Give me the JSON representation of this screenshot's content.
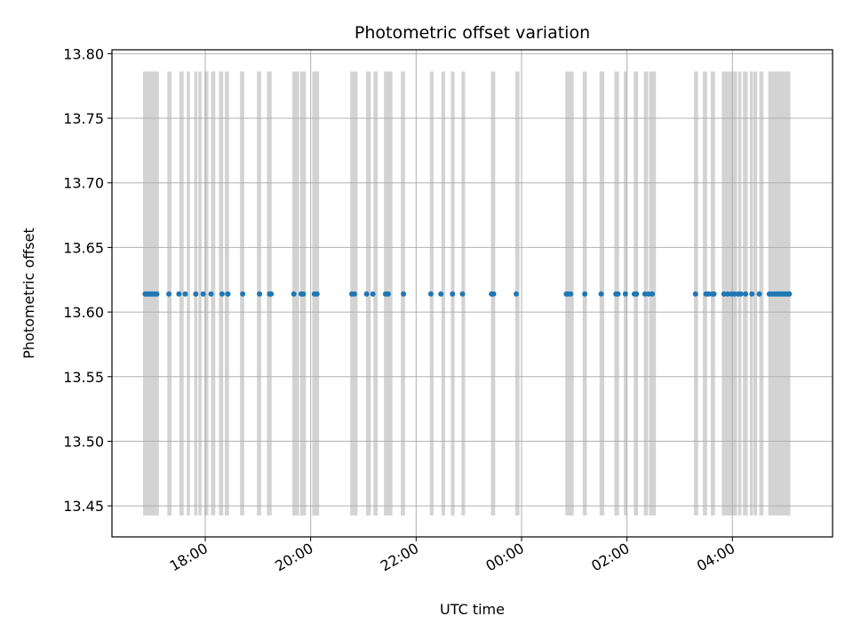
{
  "chart_data": {
    "type": "scatter",
    "title": "Photometric offset variation",
    "xlabel": "UTC time",
    "ylabel": "Photometric offset",
    "xlim_hours": [
      16.23,
      29.9
    ],
    "ylim": [
      13.426,
      13.803
    ],
    "grid": true,
    "x_ticks": [
      {
        "hours": 18,
        "label": "18:00"
      },
      {
        "hours": 20,
        "label": "20:00"
      },
      {
        "hours": 22,
        "label": "22:00"
      },
      {
        "hours": 24,
        "label": "00:00"
      },
      {
        "hours": 26,
        "label": "02:00"
      },
      {
        "hours": 28,
        "label": "04:00"
      }
    ],
    "y_ticks": [
      {
        "value": 13.45,
        "label": "13.45"
      },
      {
        "value": 13.5,
        "label": "13.50"
      },
      {
        "value": 13.55,
        "label": "13.55"
      },
      {
        "value": 13.6,
        "label": "13.60"
      },
      {
        "value": 13.65,
        "label": "13.65"
      },
      {
        "value": 13.7,
        "label": "13.70"
      },
      {
        "value": 13.75,
        "label": "13.75"
      },
      {
        "value": 13.8,
        "label": "13.80"
      }
    ],
    "exposure_bands": {
      "color": "#d3d3d3",
      "y_range": [
        13.4426,
        13.7862
      ],
      "intervals_hours": [
        [
          16.82,
          17.12
        ],
        [
          17.28,
          17.36
        ],
        [
          17.51,
          17.59
        ],
        [
          17.65,
          17.71
        ],
        [
          17.79,
          17.85
        ],
        [
          17.87,
          17.93
        ],
        [
          17.98,
          18.06
        ],
        [
          18.11,
          18.19
        ],
        [
          18.26,
          18.34
        ],
        [
          18.37,
          18.45
        ],
        [
          18.66,
          18.74
        ],
        [
          18.98,
          19.06
        ],
        [
          19.17,
          19.26
        ],
        [
          19.65,
          19.78
        ],
        [
          19.8,
          19.91
        ],
        [
          20.03,
          20.16
        ],
        [
          20.75,
          20.89
        ],
        [
          21.05,
          21.14
        ],
        [
          21.19,
          21.27
        ],
        [
          21.39,
          21.55
        ],
        [
          21.71,
          21.79
        ],
        [
          22.26,
          22.33
        ],
        [
          22.48,
          22.55
        ],
        [
          22.66,
          22.73
        ],
        [
          22.86,
          22.93
        ],
        [
          23.42,
          23.5
        ],
        [
          23.88,
          23.96
        ],
        [
          24.83,
          24.99
        ],
        [
          25.16,
          25.24
        ],
        [
          25.48,
          25.57
        ],
        [
          25.76,
          25.85
        ],
        [
          25.94,
          26.0
        ],
        [
          26.13,
          26.21
        ],
        [
          26.32,
          26.4
        ],
        [
          26.42,
          26.55
        ],
        [
          27.27,
          27.35
        ],
        [
          27.44,
          27.52
        ],
        [
          27.59,
          27.67
        ],
        [
          27.8,
          28.09
        ],
        [
          28.11,
          28.17
        ],
        [
          28.2,
          28.29
        ],
        [
          28.33,
          28.39
        ],
        [
          28.4,
          28.47
        ],
        [
          28.51,
          28.59
        ],
        [
          28.68,
          29.1
        ]
      ]
    },
    "series": [
      {
        "name": "offset",
        "color": "#1f77b4",
        "y": 13.614,
        "x_hours": [
          16.86,
          16.89,
          16.92,
          16.95,
          16.98,
          17.01,
          17.04,
          17.08,
          17.31,
          17.5,
          17.62,
          17.82,
          17.96,
          18.11,
          18.32,
          18.43,
          18.71,
          19.03,
          19.22,
          19.25,
          19.68,
          19.82,
          19.86,
          20.07,
          20.12,
          20.78,
          20.83,
          21.06,
          21.18,
          21.42,
          21.47,
          21.76,
          22.28,
          22.47,
          22.69,
          22.88,
          23.43,
          23.47,
          23.9,
          24.85,
          24.88,
          24.93,
          25.2,
          25.51,
          25.79,
          25.83,
          25.97,
          26.14,
          26.18,
          26.34,
          26.41,
          26.48,
          27.3,
          27.5,
          27.55,
          27.62,
          27.65,
          27.84,
          27.91,
          27.98,
          28.04,
          28.11,
          28.16,
          28.25,
          28.37,
          28.51,
          28.7,
          28.75,
          28.8,
          28.84,
          28.88,
          28.92,
          28.96,
          29.0,
          29.04,
          29.08
        ]
      }
    ]
  }
}
